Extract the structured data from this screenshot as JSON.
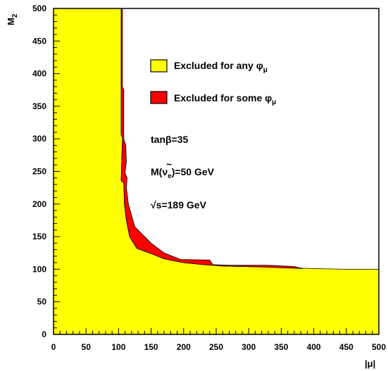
{
  "chart_data": {
    "type": "area",
    "xlabel": "|μ|",
    "ylabel": "M",
    "ylabel_sub": "2",
    "xlim": [
      0,
      500
    ],
    "ylim": [
      0,
      500
    ],
    "xticks": [
      "0",
      "50",
      "100",
      "150",
      "200",
      "250",
      "300",
      "350",
      "400",
      "450",
      "500"
    ],
    "yticks": [
      "0",
      "50",
      "100",
      "150",
      "200",
      "250",
      "300",
      "350",
      "400",
      "450",
      "500"
    ],
    "grid": false,
    "legend_position": "top-right",
    "colors": {
      "any": "#ffff00",
      "some": "#ff0000"
    },
    "series": [
      {
        "name": "Excluded for any φμ",
        "legend_main": "Excluded for any φ",
        "legend_sub": "μ",
        "color": "#ffff00",
        "outline": [
          [
            0,
            500
          ],
          [
            104,
            500
          ],
          [
            104,
            306
          ],
          [
            106,
            302
          ],
          [
            106,
            300
          ],
          [
            105,
            270
          ],
          [
            104,
            236
          ],
          [
            108,
            232
          ],
          [
            109,
            200
          ],
          [
            112,
            175
          ],
          [
            117,
            150
          ],
          [
            128,
            132
          ],
          [
            150,
            124
          ],
          [
            170,
            116
          ],
          [
            200,
            110
          ],
          [
            230,
            107
          ],
          [
            260,
            105
          ],
          [
            300,
            104
          ],
          [
            350,
            103
          ],
          [
            400,
            101
          ],
          [
            450,
            100
          ],
          [
            500,
            100
          ],
          [
            500,
            0
          ],
          [
            0,
            0
          ]
        ]
      },
      {
        "name": "Excluded for some φμ",
        "legend_main": "Excluded for some φ",
        "legend_sub": "μ",
        "color": "#ff0000",
        "outline": [
          [
            104,
            500
          ],
          [
            106,
            500
          ],
          [
            106,
            380
          ],
          [
            108,
            375
          ],
          [
            108,
            300
          ],
          [
            111,
            290
          ],
          [
            112,
            265
          ],
          [
            110,
            248
          ],
          [
            113,
            240
          ],
          [
            112,
            225
          ],
          [
            115,
            200
          ],
          [
            125,
            165
          ],
          [
            150,
            140
          ],
          [
            170,
            125
          ],
          [
            195,
            115
          ],
          [
            240,
            114
          ],
          [
            245,
            107
          ],
          [
            270,
            106
          ],
          [
            330,
            106
          ],
          [
            370,
            104
          ],
          [
            383,
            101
          ],
          [
            300,
            104
          ],
          [
            260,
            105
          ],
          [
            230,
            107
          ],
          [
            200,
            110
          ],
          [
            170,
            116
          ],
          [
            150,
            124
          ],
          [
            128,
            132
          ],
          [
            117,
            150
          ],
          [
            112,
            175
          ],
          [
            109,
            200
          ],
          [
            108,
            232
          ],
          [
            104,
            236
          ],
          [
            105,
            270
          ],
          [
            106,
            300
          ],
          [
            106,
            302
          ],
          [
            104,
            306
          ]
        ]
      }
    ],
    "annotations": [
      {
        "id": "tanb",
        "text": "tanβ=35"
      },
      {
        "id": "msnu",
        "pre": "M(ν",
        "sub": "e",
        "post": ")=50 GeV"
      },
      {
        "id": "sqrts",
        "text": "√s=189 GeV"
      }
    ]
  }
}
